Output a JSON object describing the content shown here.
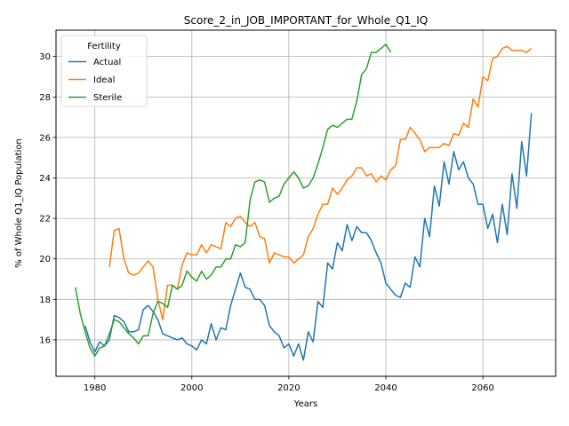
{
  "chart_data": {
    "type": "line",
    "title": "Score_2_in_JOB_IMPORTANT_for_Whole_Q1_IQ",
    "xlabel": "Years",
    "ylabel": "% of Whole Q1_IQ Population",
    "xlim": [
      1972,
      2075
    ],
    "ylim": [
      14.2,
      31.3
    ],
    "xticks": [
      1980,
      2000,
      2020,
      2040,
      2060
    ],
    "yticks": [
      16,
      18,
      20,
      22,
      24,
      26,
      28,
      30
    ],
    "grid": true,
    "legend": {
      "title": "Fertility",
      "placement": "top-left"
    },
    "series": [
      {
        "name": "Actual",
        "color": "#1f77b4",
        "x": [
          1978,
          1979,
          1980,
          1981,
          1982,
          1983,
          1984,
          1985,
          1986,
          1987,
          1988,
          1989,
          1990,
          1991,
          1992,
          1993,
          1994,
          1995,
          1996,
          1997,
          1998,
          1999,
          2000,
          2001,
          2002,
          2003,
          2004,
          2005,
          2006,
          2007,
          2008,
          2009,
          2010,
          2011,
          2012,
          2013,
          2014,
          2015,
          2016,
          2017,
          2018,
          2019,
          2020,
          2021,
          2022,
          2023,
          2024,
          2025,
          2026,
          2027,
          2028,
          2029,
          2030,
          2031,
          2032,
          2033,
          2034,
          2035,
          2036,
          2037,
          2038,
          2039,
          2040,
          2041,
          2042,
          2043,
          2044,
          2045,
          2046,
          2047,
          2048,
          2049,
          2050,
          2051,
          2052,
          2053,
          2054,
          2055,
          2056,
          2057,
          2058,
          2059,
          2060,
          2061,
          2062,
          2063,
          2064,
          2065,
          2066,
          2067,
          2068,
          2069,
          2070
        ],
        "values": [
          16.7,
          15.9,
          15.4,
          15.9,
          15.7,
          16.0,
          17.2,
          17.1,
          16.9,
          16.4,
          16.4,
          16.5,
          17.5,
          17.7,
          17.4,
          17.0,
          16.3,
          16.2,
          16.1,
          16.0,
          16.1,
          15.8,
          15.7,
          15.5,
          16.0,
          15.8,
          16.8,
          16.0,
          16.6,
          16.5,
          17.7,
          18.5,
          19.3,
          18.6,
          18.5,
          18.0,
          18.0,
          17.7,
          16.7,
          16.4,
          16.2,
          15.6,
          15.8,
          15.2,
          15.8,
          15.0,
          16.4,
          15.9,
          17.9,
          17.6,
          19.8,
          19.5,
          20.8,
          20.4,
          21.7,
          20.9,
          21.6,
          21.3,
          21.3,
          20.9,
          20.3,
          19.8,
          18.8,
          18.5,
          18.2,
          18.1,
          18.8,
          18.6,
          20.1,
          19.6,
          22.0,
          21.1,
          23.6,
          22.6,
          24.8,
          23.7,
          25.3,
          24.4,
          24.8,
          24.0,
          23.7,
          22.7,
          22.7,
          21.5,
          22.2,
          20.8,
          22.7,
          21.2,
          24.2,
          22.5,
          25.8,
          24.1,
          27.2
        ]
      },
      {
        "name": "Ideal",
        "color": "#ff7f0e",
        "x": [
          1983,
          1984,
          1985,
          1986,
          1987,
          1988,
          1989,
          1990,
          1991,
          1992,
          1993,
          1994,
          1995,
          1996,
          1997,
          1998,
          1999,
          2000,
          2001,
          2002,
          2003,
          2004,
          2005,
          2006,
          2007,
          2008,
          2009,
          2010,
          2011,
          2012,
          2013,
          2014,
          2015,
          2016,
          2017,
          2018,
          2019,
          2020,
          2021,
          2022,
          2023,
          2024,
          2025,
          2026,
          2027,
          2028,
          2029,
          2030,
          2031,
          2032,
          2033,
          2034,
          2035,
          2036,
          2037,
          2038,
          2039,
          2040,
          2041,
          2042,
          2043,
          2044,
          2045,
          2046,
          2047,
          2048,
          2049,
          2050,
          2051,
          2052,
          2053,
          2054,
          2055,
          2056,
          2057,
          2058,
          2059,
          2060,
          2061,
          2062,
          2063,
          2064,
          2065,
          2066,
          2067,
          2068,
          2069,
          2070
        ],
        "values": [
          19.6,
          21.4,
          21.5,
          20.0,
          19.3,
          19.2,
          19.3,
          19.6,
          19.9,
          19.6,
          18.0,
          17.0,
          18.7,
          18.7,
          18.5,
          19.7,
          20.3,
          20.2,
          20.2,
          20.7,
          20.3,
          20.7,
          20.6,
          20.5,
          21.8,
          21.6,
          22.0,
          22.1,
          21.8,
          21.6,
          21.8,
          21.1,
          21.0,
          19.8,
          20.3,
          20.2,
          20.1,
          20.1,
          19.8,
          20.0,
          20.2,
          21.1,
          21.5,
          22.2,
          22.7,
          22.7,
          23.5,
          23.2,
          23.5,
          23.9,
          24.1,
          24.5,
          24.5,
          24.1,
          24.2,
          23.8,
          24.1,
          23.9,
          24.4,
          24.6,
          25.9,
          25.9,
          26.5,
          26.2,
          25.9,
          25.3,
          25.5,
          25.5,
          25.5,
          25.7,
          25.6,
          26.2,
          26.1,
          26.7,
          26.5,
          27.9,
          27.5,
          29.0,
          28.8,
          29.9,
          30.0,
          30.4,
          30.5,
          30.3,
          30.3,
          30.3,
          30.2,
          30.4
        ]
      },
      {
        "name": "Sterile",
        "color": "#2ca02c",
        "x": [
          1976,
          1977,
          1978,
          1979,
          1980,
          1981,
          1982,
          1983,
          1984,
          1985,
          1986,
          1987,
          1988,
          1989,
          1990,
          1991,
          1992,
          1993,
          1994,
          1995,
          1996,
          1997,
          1998,
          1999,
          2000,
          2001,
          2002,
          2003,
          2004,
          2005,
          2006,
          2007,
          2008,
          2009,
          2010,
          2011,
          2012,
          2013,
          2014,
          2015,
          2016,
          2017,
          2018,
          2019,
          2020,
          2021,
          2022,
          2023,
          2024,
          2025,
          2026,
          2027,
          2028,
          2029,
          2030,
          2031,
          2032,
          2033,
          2034,
          2035,
          2036,
          2037,
          2038,
          2039,
          2040,
          2041
        ],
        "values": [
          18.6,
          17.3,
          16.4,
          15.6,
          15.2,
          15.6,
          15.7,
          16.3,
          17.0,
          16.9,
          16.6,
          16.3,
          16.1,
          15.8,
          16.2,
          16.2,
          17.3,
          17.9,
          17.8,
          17.6,
          18.7,
          18.5,
          18.7,
          19.4,
          19.1,
          18.9,
          19.4,
          19.0,
          19.2,
          19.6,
          19.6,
          20.0,
          20.0,
          20.7,
          20.6,
          20.8,
          22.9,
          23.8,
          23.9,
          23.8,
          22.8,
          23.0,
          23.1,
          23.7,
          24.0,
          24.3,
          24.0,
          23.5,
          23.6,
          24.0,
          24.7,
          25.5,
          26.4,
          26.6,
          26.5,
          26.7,
          26.9,
          26.9,
          27.8,
          29.1,
          29.4,
          30.2,
          30.2,
          30.4,
          30.6,
          30.2
        ]
      }
    ]
  }
}
